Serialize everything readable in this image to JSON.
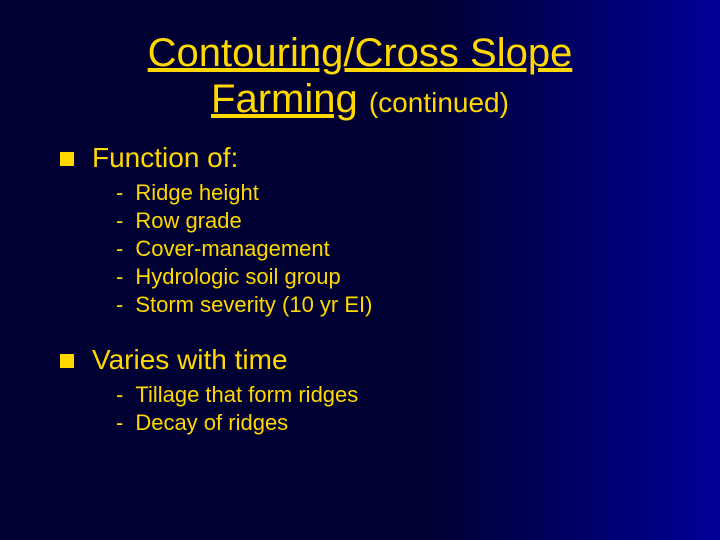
{
  "colors": {
    "bg_start": "#000033",
    "bg_end": "#000099",
    "text": "#ffd800",
    "bullet": "#ffd800"
  },
  "title": {
    "line1": "Contouring/Cross Slope",
    "line2": "Farming",
    "continued": "(continued)"
  },
  "sections": [
    {
      "heading": "Function of:",
      "items": [
        "Ridge height",
        "Row grade",
        "Cover-management",
        "Hydrologic soil group",
        "Storm severity (10 yr EI)"
      ]
    },
    {
      "heading": "Varies with time",
      "items": [
        "Tillage that form ridges",
        "Decay of ridges"
      ]
    }
  ]
}
